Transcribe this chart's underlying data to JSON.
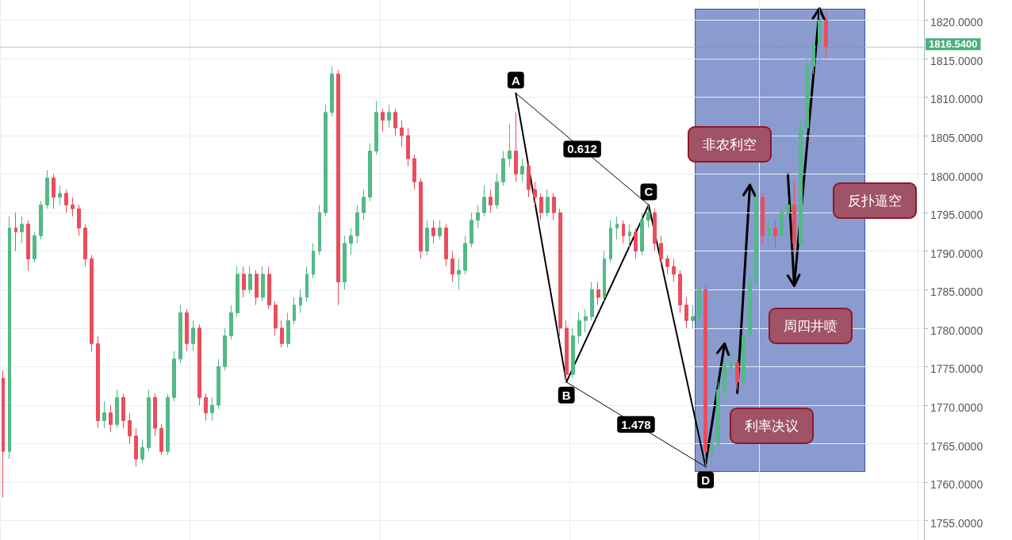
{
  "chart_data": {
    "type": "candlestick",
    "tick_labels": "y",
    "grid": true,
    "ylim": [
      1752.5,
      1822.6
    ],
    "yticks": [
      {
        "value": 1755,
        "label": "1755.0000"
      },
      {
        "value": 1760,
        "label": "1760.0000"
      },
      {
        "value": 1765,
        "label": "1765.0000"
      },
      {
        "value": 1770,
        "label": "1770.0000"
      },
      {
        "value": 1775,
        "label": "1775.0000"
      },
      {
        "value": 1780,
        "label": "1780.0000"
      },
      {
        "value": 1785,
        "label": "1785.0000"
      },
      {
        "value": 1790,
        "label": "1790.0000"
      },
      {
        "value": 1795,
        "label": "1795.0000"
      },
      {
        "value": 1800,
        "label": "1800.0000"
      },
      {
        "value": 1805,
        "label": "1805.0000"
      },
      {
        "value": 1810,
        "label": "1810.0000"
      },
      {
        "value": 1815,
        "label": "1815.0000"
      },
      {
        "value": 1820,
        "label": "1820.0000"
      }
    ],
    "categories": [
      null,
      null,
      null,
      null,
      null,
      null,
      null,
      null,
      null,
      null,
      null,
      null,
      null,
      null,
      null,
      null,
      null,
      null,
      null,
      null,
      null,
      null,
      null,
      null,
      null,
      null,
      null,
      null,
      null,
      null,
      null,
      null,
      null,
      null,
      null,
      null,
      null,
      null,
      null,
      null,
      null,
      null,
      null,
      null,
      null,
      null,
      null,
      null,
      null,
      null,
      null,
      null,
      null,
      null,
      null,
      null,
      null,
      null,
      null,
      null,
      null,
      null,
      null,
      null,
      null,
      null,
      null,
      null,
      null,
      null,
      null,
      null,
      null,
      null,
      null,
      null,
      null,
      null,
      null,
      null,
      null,
      null,
      null,
      null,
      null,
      null,
      null,
      null,
      null,
      null,
      null,
      null,
      null,
      null,
      null,
      null,
      null,
      null,
      null,
      null,
      null,
      null,
      null,
      null,
      null,
      null,
      null,
      null,
      null,
      null,
      null,
      null,
      null,
      null,
      null,
      null,
      null,
      null,
      null,
      null,
      null,
      null,
      null,
      null,
      null,
      null,
      null,
      null,
      null,
      null,
      null,
      null,
      null,
      null,
      null,
      null,
      null,
      null,
      null,
      null,
      null,
      null,
      null,
      null,
      null,
      null
    ],
    "ohlc": [
      [
        1773.5,
        1774.5,
        1758,
        1764
      ],
      [
        1764,
        1794.5,
        1763,
        1793
      ],
      [
        1793,
        1795,
        1790,
        1792.5
      ],
      [
        1792.5,
        1794.5,
        1791,
        1793.5
      ],
      [
        1793.5,
        1794,
        1787.5,
        1789
      ],
      [
        1789,
        1792.5,
        1788.5,
        1792
      ],
      [
        1792,
        1796.5,
        1791.5,
        1796
      ],
      [
        1796,
        1800.5,
        1795.5,
        1799.5
      ],
      [
        1799.5,
        1800,
        1795.5,
        1797
      ],
      [
        1797,
        1798.5,
        1796,
        1797.5
      ],
      [
        1797.5,
        1798,
        1795,
        1796
      ],
      [
        1796,
        1797,
        1794.5,
        1795.5
      ],
      [
        1795.5,
        1796,
        1792,
        1793
      ],
      [
        1793,
        1793.5,
        1788,
        1789
      ],
      [
        1789,
        1789.5,
        1777,
        1778
      ],
      [
        1778,
        1779,
        1767,
        1768
      ],
      [
        1768,
        1770.5,
        1767,
        1769
      ],
      [
        1769,
        1770,
        1766.5,
        1767.5
      ],
      [
        1767.5,
        1772,
        1767,
        1771
      ],
      [
        1771,
        1771.5,
        1767,
        1768
      ],
      [
        1768,
        1769,
        1765,
        1766
      ],
      [
        1766,
        1767,
        1762,
        1763
      ],
      [
        1763,
        1765.5,
        1762.5,
        1764.5
      ],
      [
        1764.5,
        1772,
        1764,
        1771
      ],
      [
        1771,
        1771.5,
        1766,
        1767
      ],
      [
        1767,
        1767.5,
        1763.5,
        1764
      ],
      [
        1764,
        1771.5,
        1763.5,
        1771
      ],
      [
        1771,
        1777,
        1770.5,
        1776
      ],
      [
        1776,
        1783,
        1775.5,
        1782
      ],
      [
        1782,
        1782.5,
        1777,
        1778
      ],
      [
        1778,
        1781,
        1777,
        1780
      ],
      [
        1780,
        1780.5,
        1770,
        1771
      ],
      [
        1771,
        1771.5,
        1768,
        1769
      ],
      [
        1769,
        1771,
        1768,
        1770
      ],
      [
        1770,
        1776,
        1769.5,
        1775
      ],
      [
        1775,
        1780,
        1774.5,
        1779
      ],
      [
        1779,
        1783,
        1778.5,
        1782
      ],
      [
        1782,
        1788,
        1781.5,
        1787
      ],
      [
        1787,
        1788,
        1784,
        1785
      ],
      [
        1785,
        1788,
        1784.5,
        1787
      ],
      [
        1787,
        1787.5,
        1783,
        1784
      ],
      [
        1784,
        1788,
        1783.5,
        1787
      ],
      [
        1787,
        1788,
        1782.5,
        1783
      ],
      [
        1783,
        1783.5,
        1779,
        1780
      ],
      [
        1780,
        1781,
        1777.5,
        1778
      ],
      [
        1778,
        1782,
        1777.5,
        1781
      ],
      [
        1781,
        1784,
        1780.5,
        1783
      ],
      [
        1783,
        1785,
        1782,
        1784
      ],
      [
        1784,
        1788,
        1783.5,
        1787
      ],
      [
        1787,
        1791,
        1786.5,
        1790
      ],
      [
        1790,
        1796,
        1789.5,
        1795
      ],
      [
        1795,
        1809,
        1794.5,
        1808
      ],
      [
        1808,
        1814,
        1807.5,
        1813
      ],
      [
        1813,
        1813.5,
        1783,
        1786
      ],
      [
        1786,
        1792,
        1785,
        1791
      ],
      [
        1791,
        1793,
        1789.5,
        1792
      ],
      [
        1792,
        1796,
        1791,
        1795
      ],
      [
        1795,
        1798,
        1794,
        1797
      ],
      [
        1797,
        1804,
        1796.5,
        1803
      ],
      [
        1803,
        1809.5,
        1802.5,
        1808
      ],
      [
        1808,
        1808.5,
        1805.5,
        1807
      ],
      [
        1807,
        1809,
        1806,
        1808
      ],
      [
        1808,
        1808.5,
        1805,
        1806
      ],
      [
        1806,
        1807,
        1803.5,
        1805
      ],
      [
        1805,
        1806,
        1801,
        1802
      ],
      [
        1802,
        1802.5,
        1798,
        1799
      ],
      [
        1799,
        1799.5,
        1789,
        1790
      ],
      [
        1790,
        1794,
        1789.5,
        1793
      ],
      [
        1793,
        1794,
        1791,
        1792
      ],
      [
        1792,
        1794,
        1791.5,
        1793
      ],
      [
        1793,
        1793.5,
        1788,
        1789
      ],
      [
        1789,
        1790,
        1786,
        1787
      ],
      [
        1787,
        1789,
        1785,
        1787.5
      ],
      [
        1787.5,
        1792,
        1787,
        1791
      ],
      [
        1791,
        1795,
        1790.5,
        1794
      ],
      [
        1794,
        1796,
        1793,
        1795
      ],
      [
        1795,
        1798.5,
        1794.5,
        1797
      ],
      [
        1797,
        1798,
        1795,
        1796
      ],
      [
        1796,
        1800,
        1795.5,
        1799
      ],
      [
        1799,
        1803,
        1798.5,
        1802
      ],
      [
        1802,
        1806.5,
        1801,
        1803
      ],
      [
        1803,
        1808,
        1799,
        1800
      ],
      [
        1800,
        1802,
        1799,
        1801
      ],
      [
        1801,
        1801.5,
        1797,
        1798
      ],
      [
        1798,
        1799,
        1796,
        1797
      ],
      [
        1797,
        1797.5,
        1794,
        1795
      ],
      [
        1795,
        1798,
        1794.5,
        1797
      ],
      [
        1797,
        1797.5,
        1794,
        1795
      ],
      [
        1795,
        1795.5,
        1779,
        1780
      ],
      [
        1780,
        1781,
        1773,
        1774
      ],
      [
        1774,
        1780,
        1773.5,
        1779
      ],
      [
        1779,
        1782,
        1778,
        1781
      ],
      [
        1781,
        1782.5,
        1779.5,
        1781.5
      ],
      [
        1781.5,
        1786,
        1781,
        1785
      ],
      [
        1785,
        1786,
        1783,
        1784
      ],
      [
        1784,
        1790,
        1783.5,
        1789
      ],
      [
        1789,
        1794,
        1788.5,
        1793
      ],
      [
        1793,
        1794.5,
        1791.5,
        1793.5
      ],
      [
        1793.5,
        1794,
        1791,
        1792
      ],
      [
        1792,
        1793.5,
        1790.5,
        1792.5
      ],
      [
        1792.5,
        1793,
        1789,
        1790
      ],
      [
        1790,
        1795,
        1789.5,
        1794
      ],
      [
        1794,
        1796,
        1793,
        1795
      ],
      [
        1795,
        1795.5,
        1790,
        1791
      ],
      [
        1791,
        1792,
        1788,
        1789
      ],
      [
        1789,
        1789.5,
        1787,
        1788
      ],
      [
        1788,
        1789,
        1786,
        1787
      ],
      [
        1787,
        1787.5,
        1782,
        1783
      ],
      [
        1783,
        1784,
        1780,
        1781
      ],
      [
        1781,
        1783,
        1780,
        1781.5
      ],
      [
        1781.5,
        1786,
        1781,
        1785
      ],
      [
        1785,
        1785.5,
        1762,
        1764
      ],
      [
        1764,
        1766,
        1762.5,
        1765
      ],
      [
        1765,
        1773,
        1764.5,
        1772
      ],
      [
        1772,
        1776,
        1771,
        1775
      ],
      [
        1775,
        1777.5,
        1774,
        1775.5
      ],
      [
        1775.5,
        1776,
        1772,
        1773
      ],
      [
        1773,
        1780,
        1772.5,
        1779
      ],
      [
        1779,
        1787,
        1778.5,
        1786
      ],
      [
        1786,
        1798,
        1785.5,
        1797
      ],
      [
        1797,
        1797.5,
        1791,
        1792
      ],
      [
        1792,
        1794.5,
        1791,
        1793
      ],
      [
        1793,
        1794,
        1790.5,
        1792
      ],
      [
        1792,
        1796,
        1791.5,
        1795
      ],
      [
        1795,
        1797,
        1794,
        1796
      ],
      [
        1796,
        1799,
        1790,
        1791
      ],
      [
        1791,
        1807,
        1790.5,
        1806
      ],
      [
        1806,
        1815,
        1805.5,
        1814
      ],
      [
        1814,
        1818,
        1813,
        1817
      ],
      [
        1817,
        1821.5,
        1813,
        1820
      ],
      [
        1820,
        1821,
        1815,
        1816.54
      ],
      null,
      null,
      null,
      null,
      null,
      null,
      null,
      null,
      null,
      null,
      null,
      null,
      null,
      null,
      null
    ],
    "series": [
      {
        "type": "line",
        "color": "#000000",
        "line_style": "solid",
        "values": [
          null,
          null,
          null,
          null,
          null,
          null,
          null,
          null,
          null,
          null,
          null,
          null,
          null,
          null,
          null,
          null,
          null,
          null,
          null,
          null,
          null,
          null,
          null,
          null,
          null,
          null,
          null,
          null,
          null,
          null,
          null,
          null,
          null,
          null,
          null,
          null,
          null,
          null,
          null,
          null,
          null,
          null,
          null,
          null,
          null,
          null,
          null,
          null,
          null,
          null,
          null,
          null,
          null,
          null,
          null,
          null,
          null,
          null,
          null,
          null,
          null,
          null,
          null,
          null,
          null,
          null,
          null,
          null,
          null,
          null,
          null,
          null,
          null,
          null,
          null,
          null,
          null,
          null,
          null,
          null,
          null,
          1810.5,
          null,
          null,
          null,
          null,
          null,
          null,
          null,
          1773,
          null,
          null,
          null,
          null,
          null,
          null,
          null,
          null,
          null,
          null,
          null,
          null,
          1796,
          null,
          null,
          null,
          null,
          null,
          null,
          null,
          null,
          1762,
          null,
          null,
          null,
          null,
          null,
          null,
          null,
          null,
          null,
          null,
          null,
          null,
          null,
          null,
          null,
          null,
          null,
          null,
          null,
          null,
          null,
          null,
          null,
          null,
          null,
          null,
          null,
          null,
          null,
          null,
          null,
          null,
          null,
          null
        ],
        "value_labels": [
          null,
          null,
          null,
          null,
          null,
          null,
          null,
          null,
          null,
          null,
          null,
          null,
          null,
          null,
          null,
          null,
          null,
          null,
          null,
          null,
          null,
          null,
          null,
          null,
          null,
          null,
          null,
          null,
          null,
          null,
          null,
          null,
          null,
          null,
          null,
          null,
          null,
          null,
          null,
          null,
          null,
          null,
          null,
          null,
          null,
          null,
          null,
          null,
          null,
          null,
          null,
          null,
          null,
          null,
          null,
          null,
          null,
          null,
          null,
          null,
          null,
          null,
          null,
          null,
          null,
          null,
          null,
          null,
          null,
          null,
          null,
          null,
          null,
          null,
          null,
          null,
          null,
          null,
          null,
          null,
          null,
          "A",
          null,
          null,
          null,
          null,
          null,
          null,
          null,
          "B",
          null,
          null,
          null,
          null,
          null,
          null,
          null,
          null,
          null,
          null,
          null,
          null,
          "C",
          null,
          null,
          null,
          null,
          null,
          null,
          null,
          null,
          "D",
          null,
          null,
          null,
          null,
          null,
          null,
          null,
          null,
          null,
          null,
          null,
          null,
          null,
          null,
          null,
          null,
          null,
          null,
          null,
          null,
          null,
          null,
          null,
          null,
          null,
          null,
          null,
          null,
          null,
          null,
          null,
          null,
          null,
          null
        ]
      },
      {
        "type": "line",
        "color": "#000000",
        "values": [
          null,
          null,
          null,
          null,
          null,
          null,
          null,
          null,
          null,
          null,
          null,
          null,
          null,
          null,
          null,
          null,
          null,
          null,
          null,
          null,
          null,
          null,
          null,
          null,
          null,
          null,
          null,
          null,
          null,
          null,
          null,
          null,
          null,
          null,
          null,
          null,
          null,
          null,
          null,
          null,
          null,
          null,
          null,
          null,
          null,
          null,
          null,
          null,
          null,
          null,
          null,
          null,
          null,
          null,
          null,
          null,
          null,
          null,
          null,
          null,
          null,
          null,
          null,
          null,
          null,
          null,
          null,
          null,
          null,
          null,
          null,
          null,
          null,
          null,
          null,
          null,
          null,
          null,
          null,
          null,
          null,
          1810.5,
          null,
          null,
          null,
          null,
          null,
          null,
          null,
          null,
          null,
          null,
          null,
          null,
          null,
          null,
          null,
          null,
          null,
          null,
          null,
          null,
          1796,
          null,
          null,
          null,
          null,
          null,
          null,
          null,
          null,
          null,
          null,
          null,
          null,
          null,
          null,
          null,
          null,
          null,
          null,
          null,
          null,
          null,
          null,
          null,
          null,
          null,
          null,
          null,
          null,
          null,
          null,
          null,
          null,
          null,
          null,
          null,
          null,
          null,
          null,
          null,
          null,
          null,
          null,
          null
        ],
        "value_labels": [
          null,
          null,
          null,
          null,
          null,
          null,
          null,
          null,
          null,
          null,
          null,
          null,
          null,
          null,
          null,
          null,
          null,
          null,
          null,
          null,
          null,
          null,
          null,
          null,
          null,
          null,
          null,
          null,
          null,
          null,
          null,
          null,
          null,
          null,
          null,
          null,
          null,
          null,
          null,
          null,
          null,
          null,
          null,
          null,
          null,
          null,
          null,
          null,
          null,
          null,
          null,
          null,
          null,
          null,
          null,
          null,
          null,
          null,
          null,
          null,
          null,
          null,
          null,
          null,
          null,
          null,
          null,
          null,
          null,
          null,
          null,
          null,
          null,
          null,
          null,
          null,
          null,
          null,
          null,
          null,
          null,
          null,
          null,
          null,
          null,
          null,
          null,
          null,
          null,
          null,
          null,
          null,
          null,
          null,
          null,
          null,
          null,
          null,
          null,
          null,
          null,
          null,
          null,
          null,
          null,
          null,
          null,
          null,
          null,
          null,
          null,
          null,
          null,
          null,
          null,
          null,
          null,
          null,
          null,
          null,
          null,
          null,
          null,
          null,
          null,
          null,
          null,
          null,
          null,
          null,
          null,
          null,
          null,
          null,
          null,
          null,
          null,
          null,
          null,
          null,
          null,
          null,
          null,
          null,
          null,
          null
        ]
      },
      {
        "type": "line",
        "color": "#000000",
        "values": [
          null,
          null,
          null,
          null,
          null,
          null,
          null,
          null,
          null,
          null,
          null,
          null,
          null,
          null,
          null,
          null,
          null,
          null,
          null,
          null,
          null,
          null,
          null,
          null,
          null,
          null,
          null,
          null,
          null,
          null,
          null,
          null,
          null,
          null,
          null,
          null,
          null,
          null,
          null,
          null,
          null,
          null,
          null,
          null,
          null,
          null,
          null,
          null,
          null,
          null,
          null,
          null,
          null,
          null,
          null,
          null,
          null,
          null,
          null,
          null,
          null,
          null,
          null,
          null,
          null,
          null,
          null,
          null,
          null,
          null,
          null,
          null,
          null,
          null,
          null,
          null,
          null,
          null,
          null,
          null,
          null,
          null,
          null,
          null,
          null,
          null,
          null,
          null,
          null,
          1773,
          null,
          null,
          null,
          null,
          null,
          null,
          null,
          null,
          null,
          null,
          null,
          null,
          null,
          null,
          null,
          null,
          null,
          null,
          null,
          null,
          null,
          1762,
          null,
          null,
          null,
          null,
          null,
          null,
          null,
          null,
          null,
          null,
          null,
          null,
          null,
          null,
          null,
          null,
          null,
          null,
          null,
          null,
          null,
          null,
          null,
          null,
          null,
          null,
          null,
          null,
          null,
          null,
          null,
          null,
          null,
          null
        ],
        "value_labels": [
          null,
          null,
          null,
          null,
          null,
          null,
          null,
          null,
          null,
          null,
          null,
          null,
          null,
          null,
          null,
          null,
          null,
          null,
          null,
          null,
          null,
          null,
          null,
          null,
          null,
          null,
          null,
          null,
          null,
          null,
          null,
          null,
          null,
          null,
          null,
          null,
          null,
          null,
          null,
          null,
          null,
          null,
          null,
          null,
          null,
          null,
          null,
          null,
          null,
          null,
          null,
          null,
          null,
          null,
          null,
          null,
          null,
          null,
          null,
          null,
          null,
          null,
          null,
          null,
          null,
          null,
          null,
          null,
          null,
          null,
          null,
          null,
          null,
          null,
          null,
          null,
          null,
          null,
          null,
          null,
          null,
          null,
          null,
          null,
          null,
          null,
          null,
          null,
          null,
          null,
          null,
          null,
          null,
          null,
          null,
          null,
          null,
          null,
          null,
          null,
          null,
          null,
          null,
          null,
          null,
          null,
          null,
          null,
          null,
          null,
          null,
          null,
          null,
          null,
          null,
          null,
          null,
          null,
          null,
          null,
          null,
          null,
          null,
          null,
          null,
          null,
          null,
          null,
          null,
          null,
          null,
          null,
          null,
          null,
          null,
          null,
          null,
          null,
          null,
          null,
          null,
          null,
          null,
          null,
          null,
          null
        ]
      },
      {
        "type": "line",
        "color": "#000000",
        "values": [
          null,
          null,
          null,
          null,
          null,
          null,
          null,
          null,
          null,
          null,
          null,
          null,
          null,
          null,
          null,
          null,
          null,
          null,
          null,
          null,
          null,
          null,
          null,
          null,
          null,
          null,
          null,
          null,
          null,
          null,
          null,
          null,
          null,
          null,
          null,
          null,
          null,
          null,
          null,
          null,
          null,
          null,
          null,
          null,
          null,
          null,
          null,
          null,
          null,
          null,
          null,
          null,
          null,
          null,
          null,
          null,
          null,
          null,
          null,
          null,
          null,
          null,
          null,
          null,
          null,
          null,
          null,
          null,
          null,
          null,
          null,
          null,
          null,
          null,
          null,
          null,
          null,
          null,
          null,
          null,
          null,
          null,
          null,
          null,
          null,
          null,
          null,
          null,
          null,
          null,
          null,
          null,
          null,
          null,
          null,
          null,
          null,
          null,
          null,
          null,
          null,
          null,
          null,
          null,
          null,
          null,
          null,
          null,
          null,
          null,
          null,
          1762.4,
          null,
          null,
          1778,
          null,
          null,
          null,
          null,
          null,
          null,
          null,
          null,
          null,
          null,
          null,
          null,
          null,
          null,
          null,
          null,
          null,
          null,
          null,
          null,
          null,
          null,
          null,
          null,
          null,
          null,
          null,
          null,
          null,
          null,
          null
        ]
      },
      {
        "type": "line",
        "color": "#000000",
        "values": [
          null,
          null,
          null,
          null,
          null,
          null,
          null,
          null,
          null,
          null,
          null,
          null,
          null,
          null,
          null,
          null,
          null,
          null,
          null,
          null,
          null,
          null,
          null,
          null,
          null,
          null,
          null,
          null,
          null,
          null,
          null,
          null,
          null,
          null,
          null,
          null,
          null,
          null,
          null,
          null,
          null,
          null,
          null,
          null,
          null,
          null,
          null,
          null,
          null,
          null,
          null,
          null,
          null,
          null,
          null,
          null,
          null,
          null,
          null,
          null,
          null,
          null,
          null,
          null,
          null,
          null,
          null,
          null,
          null,
          null,
          null,
          null,
          null,
          null,
          null,
          null,
          null,
          null,
          null,
          null,
          null,
          null,
          null,
          null,
          null,
          null,
          null,
          null,
          null,
          null,
          null,
          null,
          null,
          null,
          null,
          null,
          null,
          null,
          null,
          null,
          null,
          null,
          null,
          null,
          null,
          null,
          null,
          null,
          null,
          null,
          null,
          null,
          null,
          null,
          null,
          null,
          1771.6,
          null,
          1798.6,
          null,
          null,
          null,
          null,
          null,
          null,
          null,
          null,
          null,
          null,
          null,
          null,
          null,
          null,
          null,
          null,
          null,
          null,
          null,
          null,
          null,
          null,
          null,
          null,
          null,
          null,
          null
        ]
      },
      {
        "type": "line",
        "color": "#000000",
        "values": [
          null,
          null,
          null,
          null,
          null,
          null,
          null,
          null,
          null,
          null,
          null,
          null,
          null,
          null,
          null,
          null,
          null,
          null,
          null,
          null,
          null,
          null,
          null,
          null,
          null,
          null,
          null,
          null,
          null,
          null,
          null,
          null,
          null,
          null,
          null,
          null,
          null,
          null,
          null,
          null,
          null,
          null,
          null,
          null,
          null,
          null,
          null,
          null,
          null,
          null,
          null,
          null,
          null,
          null,
          null,
          null,
          null,
          null,
          null,
          null,
          null,
          null,
          null,
          null,
          null,
          null,
          null,
          null,
          null,
          null,
          null,
          null,
          null,
          null,
          null,
          null,
          null,
          null,
          null,
          null,
          null,
          null,
          null,
          null,
          null,
          null,
          null,
          null,
          null,
          null,
          null,
          null,
          null,
          null,
          null,
          null,
          null,
          null,
          null,
          null,
          null,
          null,
          null,
          null,
          null,
          null,
          null,
          null,
          null,
          null,
          null,
          null,
          null,
          null,
          null,
          null,
          null,
          null,
          null,
          null,
          null,
          null,
          null,
          null,
          1800,
          1785.5,
          null,
          null,
          null,
          null,
          null,
          null,
          null,
          null,
          null,
          null,
          null,
          null,
          null,
          null,
          null,
          null,
          null,
          null,
          null,
          null
        ]
      },
      {
        "type": "line",
        "color": "#000000",
        "values": [
          null,
          null,
          null,
          null,
          null,
          null,
          null,
          null,
          null,
          null,
          null,
          null,
          null,
          null,
          null,
          null,
          null,
          null,
          null,
          null,
          null,
          null,
          null,
          null,
          null,
          null,
          null,
          null,
          null,
          null,
          null,
          null,
          null,
          null,
          null,
          null,
          null,
          null,
          null,
          null,
          null,
          null,
          null,
          null,
          null,
          null,
          null,
          null,
          null,
          null,
          null,
          null,
          null,
          null,
          null,
          null,
          null,
          null,
          null,
          null,
          null,
          null,
          null,
          null,
          null,
          null,
          null,
          null,
          null,
          null,
          null,
          null,
          null,
          null,
          null,
          null,
          null,
          null,
          null,
          null,
          null,
          null,
          null,
          null,
          null,
          null,
          null,
          null,
          null,
          null,
          null,
          null,
          null,
          null,
          null,
          null,
          null,
          null,
          null,
          null,
          null,
          null,
          null,
          null,
          null,
          null,
          null,
          null,
          null,
          null,
          null,
          null,
          null,
          null,
          null,
          null,
          null,
          null,
          null,
          null,
          null,
          null,
          null,
          null,
          null,
          1785.5,
          null,
          null,
          null,
          1821.5,
          null,
          null,
          null,
          null,
          null,
          null,
          null,
          null,
          null,
          null,
          null,
          null,
          null,
          null,
          null,
          null
        ]
      }
    ],
    "ref_lines": [
      {
        "axis": "y",
        "value": 1816.54,
        "label": "1816.5400",
        "color": "#4caf7d",
        "line_style": "dotted"
      }
    ],
    "annotations": [
      "利率决议",
      "周四井喷",
      "非农利空",
      "反扑逼空",
      "0.612",
      "1.478"
    ]
  }
}
